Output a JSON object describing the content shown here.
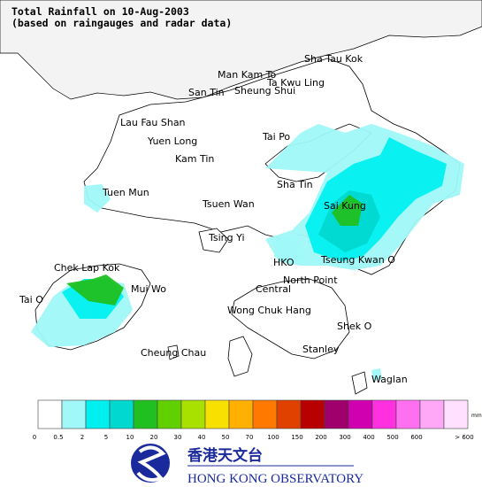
{
  "header": {
    "title": "Total Rainfall on 10-Aug-2003",
    "subtitle": "(based on raingauges and radar data)"
  },
  "places": [
    "Sha Tau Kok",
    "Man Kam To",
    "Ta Kwu Ling",
    "San Tin",
    "Sheung Shui",
    "Lau Fau Shan",
    "Yuen Long",
    "Tai Po",
    "Kam Tin",
    "Sha Tin",
    "Tuen Mun",
    "Tsuen Wan",
    "Sai Kung",
    "Tsing Yi",
    "HKO",
    "Tseung Kwan O",
    "Chek Lap Kok",
    "North Point",
    "Mui Wo",
    "Central",
    "Tai O",
    "Wong Chuk Hang",
    "Shek O",
    "Stanley",
    "Cheung Chau",
    "Waglan"
  ],
  "legend": {
    "bins": [
      0,
      0.5,
      2,
      5,
      10,
      20,
      30,
      40,
      50,
      70,
      100,
      150,
      200,
      300,
      400,
      500,
      600
    ],
    "overflow_label": "> 600",
    "unit": "mm",
    "colors": [
      "#ffffff",
      "#a0f8f8",
      "#00f0f0",
      "#00d8d0",
      "#20c020",
      "#60d000",
      "#a8e000",
      "#f8e000",
      "#ffb000",
      "#ff7800",
      "#e04000",
      "#b80000",
      "#a0006c",
      "#d000b0",
      "#ff30e0",
      "#ff70f0",
      "#ffa8f8",
      "#ffe0ff"
    ]
  },
  "logo": {
    "chinese": "香港天文台",
    "english": "HONG KONG OBSERVATORY"
  }
}
